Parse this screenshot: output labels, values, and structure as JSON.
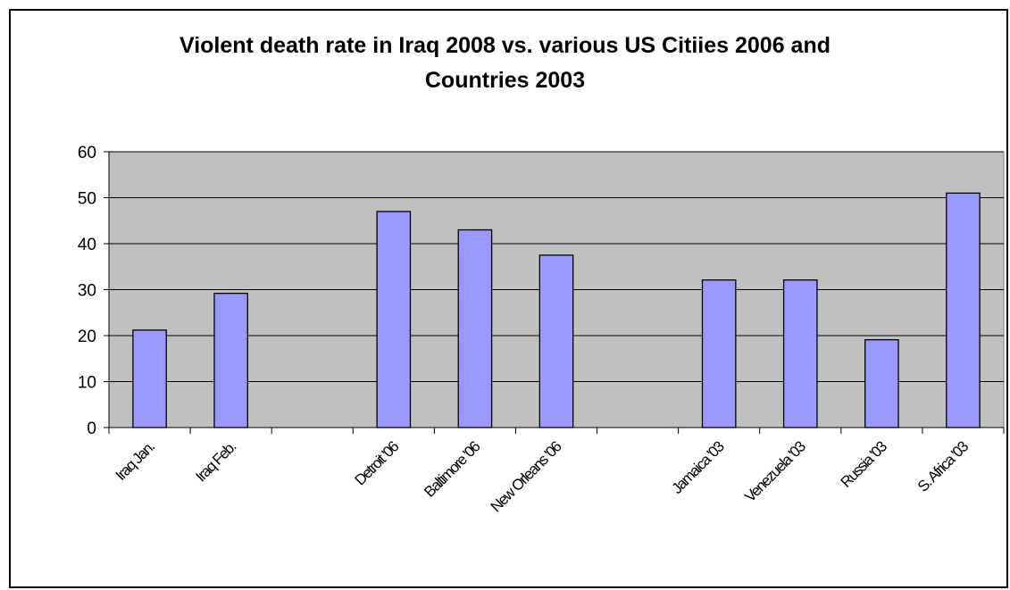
{
  "chart_data": {
    "type": "bar",
    "title_lines": [
      "Violent death rate in Iraq 2008 vs. various US Citiies 2006 and",
      "Countries 2003"
    ],
    "xlabel": "",
    "ylabel": "",
    "ylim": [
      0,
      60
    ],
    "yticks": [
      0,
      10,
      20,
      30,
      40,
      50,
      60
    ],
    "grid": true,
    "legend": "none",
    "plot_background": "#c0c0c0",
    "bar_color": "#9999ff",
    "categories": [
      "Iraq Jan.",
      "Iraq Feb.",
      "",
      "Detroit '06",
      "Baltimore '06",
      "New Orleans '06",
      "",
      "Jamaica '03",
      "Venezuela '03",
      "Russia '03",
      "S. Africa '03"
    ],
    "values": [
      21.2,
      29.2,
      null,
      47,
      43,
      37.5,
      null,
      32.1,
      32.1,
      19.1,
      51
    ]
  }
}
